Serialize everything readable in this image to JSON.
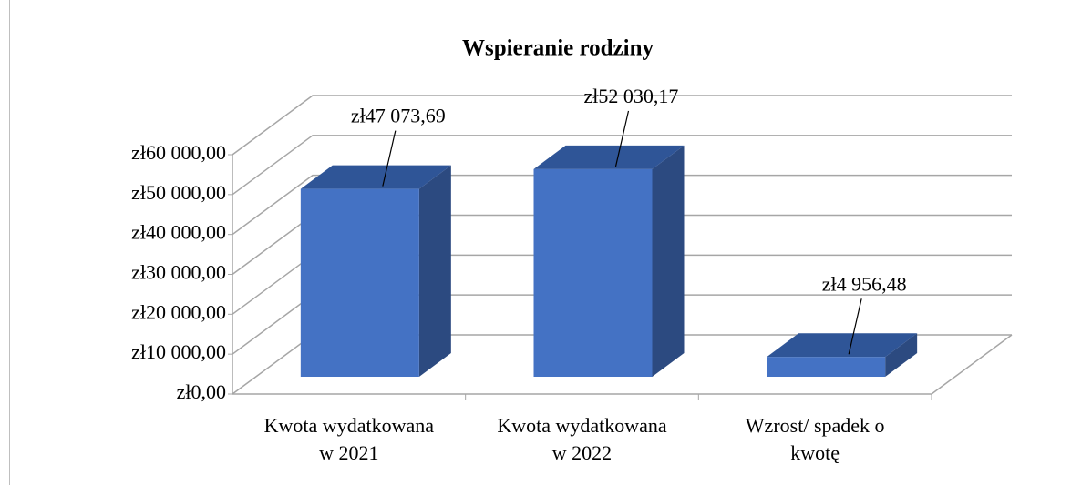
{
  "chart_data": {
    "type": "bar3d",
    "title": "Wspieranie rodziny",
    "categories": [
      "Kwota wydatkowana w 2021",
      "Kwota wydatkowana w 2022",
      "Wzrost/ spadek o kwotę"
    ],
    "values": [
      47073.69,
      52030.17,
      4956.48
    ],
    "value_labels": [
      "zł47 073,69",
      "zł52 030,17",
      "zł4 956,48"
    ],
    "color": "#4472c4",
    "ylim": [
      0,
      60000
    ],
    "yticks": [
      {
        "value": 0,
        "label": "zł0,00"
      },
      {
        "value": 10000,
        "label": "zł10 000,00"
      },
      {
        "value": 20000,
        "label": "zł20 000,00"
      },
      {
        "value": 30000,
        "label": "zł30 000,00"
      },
      {
        "value": 40000,
        "label": "zł40 000,00"
      },
      {
        "value": 50000,
        "label": "zł50 000,00"
      },
      {
        "value": 60000,
        "label": "zł60 000,00"
      }
    ],
    "grid": true
  }
}
